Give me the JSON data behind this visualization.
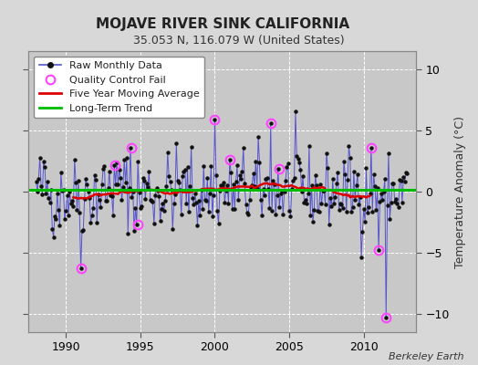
{
  "title": "MOJAVE RIVER SINK CALIFORNIA",
  "subtitle": "35.053 N, 116.079 W (United States)",
  "ylabel": "Temperature Anomaly (°C)",
  "credit": "Berkeley Earth",
  "xlim": [
    1987.5,
    2013.5
  ],
  "ylim": [
    -11.5,
    11.5
  ],
  "yticks": [
    -10,
    -5,
    0,
    5,
    10
  ],
  "xticks": [
    1990,
    1995,
    2000,
    2005,
    2010
  ],
  "fig_bg_color": "#d8d8d8",
  "plot_bg_color": "#c8c8c8",
  "raw_line_color": "#5555cc",
  "raw_dot_color": "#111111",
  "qc_color": "#ff44ff",
  "moving_avg_color": "#dd0000",
  "trend_color": "#00bb00",
  "trend_value": 0.12,
  "title_fontsize": 11,
  "subtitle_fontsize": 9,
  "tick_labelsize": 9,
  "ylabel_fontsize": 9,
  "legend_fontsize": 8,
  "credit_fontsize": 8,
  "n_years": 25,
  "start_year": 1988.0,
  "seed": 42,
  "qc_times": [
    1991.0,
    1993.3,
    1994.4,
    1994.8,
    2000.0,
    2001.0,
    2003.75,
    2004.3,
    2010.5,
    2011.0,
    2011.5
  ],
  "qc_values": [
    -6.3,
    2.2,
    3.6,
    -2.7,
    5.9,
    2.6,
    5.6,
    1.9,
    3.6,
    -4.8,
    -10.3
  ]
}
